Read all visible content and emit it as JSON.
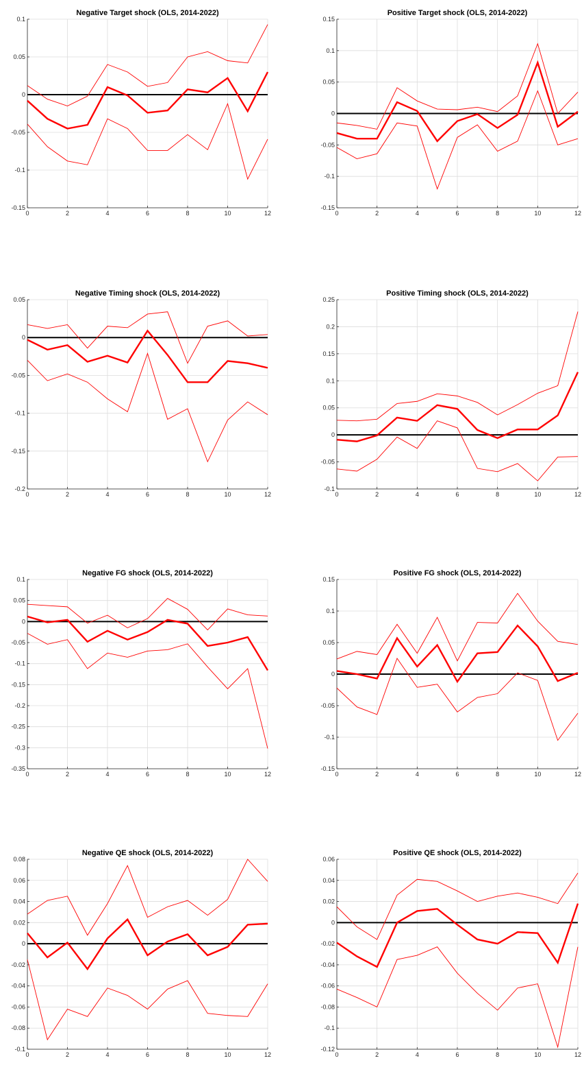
{
  "figure": {
    "x_ticks": [
      "0",
      "2",
      "4",
      "6",
      "8",
      "10",
      "12"
    ]
  },
  "chart_data": [
    {
      "type": "line",
      "title": "Negative Target shock (OLS, 2014-2022)",
      "xlabel": "",
      "ylabel": "",
      "xlim": [
        0,
        12
      ],
      "ylim": [
        -0.15,
        0.1
      ],
      "y_ticks": [
        "-0.15",
        "-0.1",
        "-0.05",
        "0",
        "0.05",
        "0.1"
      ],
      "grid": true,
      "x": [
        0,
        1,
        2,
        3,
        4,
        5,
        6,
        7,
        8,
        9,
        10,
        11,
        12
      ],
      "series": [
        {
          "role": "upper",
          "values": [
            0.012,
            -0.006,
            -0.015,
            -0.002,
            0.04,
            0.03,
            0.011,
            0.016,
            0.05,
            0.057,
            0.045,
            0.042,
            0.093
          ]
        },
        {
          "role": "estimate",
          "values": [
            -0.008,
            -0.032,
            -0.045,
            -0.04,
            0.01,
            -0.001,
            -0.024,
            -0.021,
            0.007,
            0.003,
            0.022,
            -0.022,
            0.03
          ]
        },
        {
          "role": "lower",
          "values": [
            -0.039,
            -0.069,
            -0.088,
            -0.093,
            -0.032,
            -0.045,
            -0.074,
            -0.074,
            -0.053,
            -0.073,
            -0.012,
            -0.112,
            -0.059
          ]
        }
      ]
    },
    {
      "type": "line",
      "title": "Positive Target shock (OLS, 2014-2022)",
      "xlabel": "",
      "ylabel": "",
      "xlim": [
        0,
        12
      ],
      "ylim": [
        -0.15,
        0.15
      ],
      "y_ticks": [
        "-0.15",
        "-0.1",
        "-0.05",
        "0",
        "0.05",
        "0.1",
        "0.15"
      ],
      "grid": true,
      "x": [
        0,
        1,
        2,
        3,
        4,
        5,
        6,
        7,
        8,
        9,
        10,
        11,
        12
      ],
      "series": [
        {
          "role": "upper",
          "values": [
            -0.015,
            -0.019,
            -0.025,
            0.041,
            0.02,
            0.007,
            0.006,
            0.01,
            0.003,
            0.028,
            0.111,
            0.0,
            0.034
          ]
        },
        {
          "role": "estimate",
          "values": [
            -0.031,
            -0.04,
            -0.04,
            0.018,
            0.004,
            -0.044,
            -0.012,
            -0.001,
            -0.023,
            -0.002,
            0.081,
            -0.021,
            0.003
          ]
        },
        {
          "role": "lower",
          "values": [
            -0.054,
            -0.072,
            -0.064,
            -0.015,
            -0.02,
            -0.12,
            -0.038,
            -0.018,
            -0.06,
            -0.044,
            0.036,
            -0.05,
            -0.04
          ]
        }
      ]
    },
    {
      "type": "line",
      "title": "Negative Timing shock (OLS, 2014-2022)",
      "xlabel": "",
      "ylabel": "",
      "xlim": [
        0,
        12
      ],
      "ylim": [
        -0.2,
        0.05
      ],
      "y_ticks": [
        "-0.2",
        "-0.15",
        "-0.1",
        "-0.05",
        "0",
        "0.05"
      ],
      "grid": true,
      "x": [
        0,
        1,
        2,
        3,
        4,
        5,
        6,
        7,
        8,
        9,
        10,
        11,
        12
      ],
      "series": [
        {
          "role": "upper",
          "values": [
            0.017,
            0.012,
            0.017,
            -0.014,
            0.015,
            0.013,
            0.031,
            0.034,
            -0.034,
            0.015,
            0.022,
            0.002,
            0.004
          ]
        },
        {
          "role": "estimate",
          "values": [
            -0.003,
            -0.016,
            -0.01,
            -0.032,
            -0.024,
            -0.033,
            0.009,
            -0.023,
            -0.059,
            -0.059,
            -0.031,
            -0.034,
            -0.04
          ]
        },
        {
          "role": "lower",
          "values": [
            -0.03,
            -0.057,
            -0.048,
            -0.059,
            -0.081,
            -0.098,
            -0.021,
            -0.108,
            -0.094,
            -0.164,
            -0.109,
            -0.085,
            -0.102
          ]
        }
      ]
    },
    {
      "type": "line",
      "title": "Positive Timing shock (OLS, 2014-2022)",
      "xlabel": "",
      "ylabel": "",
      "xlim": [
        0,
        12
      ],
      "ylim": [
        -0.1,
        0.25
      ],
      "y_ticks": [
        "-0.1",
        "-0.05",
        "0",
        "0.05",
        "0.1",
        "0.15",
        "0.2",
        "0.25"
      ],
      "grid": true,
      "x": [
        0,
        1,
        2,
        3,
        4,
        5,
        6,
        7,
        8,
        9,
        10,
        11,
        12
      ],
      "series": [
        {
          "role": "upper",
          "values": [
            0.027,
            0.026,
            0.029,
            0.058,
            0.062,
            0.076,
            0.072,
            0.06,
            0.037,
            0.056,
            0.077,
            0.091,
            0.228
          ]
        },
        {
          "role": "estimate",
          "values": [
            -0.009,
            -0.012,
            -0.001,
            0.032,
            0.026,
            0.055,
            0.048,
            0.009,
            -0.006,
            0.01,
            0.01,
            0.036,
            0.116
          ]
        },
        {
          "role": "lower",
          "values": [
            -0.063,
            -0.067,
            -0.045,
            -0.004,
            -0.025,
            0.026,
            0.013,
            -0.062,
            -0.068,
            -0.053,
            -0.085,
            -0.041,
            -0.04
          ]
        }
      ]
    },
    {
      "type": "line",
      "title": "Negative FG shock (OLS, 2014-2022)",
      "xlabel": "",
      "ylabel": "",
      "xlim": [
        0,
        12
      ],
      "ylim": [
        -0.35,
        0.1
      ],
      "y_ticks": [
        "-0.35",
        "-0.3",
        "-0.25",
        "-0.2",
        "-0.15",
        "-0.1",
        "-0.05",
        "0",
        "0.05",
        "0.1"
      ],
      "grid": true,
      "x": [
        0,
        1,
        2,
        3,
        4,
        5,
        6,
        7,
        8,
        9,
        10,
        11,
        12
      ],
      "series": [
        {
          "role": "upper",
          "values": [
            0.041,
            0.038,
            0.035,
            -0.004,
            0.015,
            -0.015,
            0.007,
            0.055,
            0.029,
            -0.02,
            0.03,
            0.016,
            0.013
          ]
        },
        {
          "role": "estimate",
          "values": [
            0.012,
            -0.002,
            0.004,
            -0.048,
            -0.022,
            -0.043,
            -0.025,
            0.004,
            -0.005,
            -0.058,
            -0.05,
            -0.037,
            -0.116
          ]
        },
        {
          "role": "lower",
          "values": [
            -0.028,
            -0.054,
            -0.043,
            -0.112,
            -0.075,
            -0.085,
            -0.07,
            -0.067,
            -0.053,
            -0.108,
            -0.16,
            -0.112,
            -0.302
          ]
        }
      ]
    },
    {
      "type": "line",
      "title": "Positive FG shock (OLS, 2014-2022)",
      "xlabel": "",
      "ylabel": "",
      "xlim": [
        0,
        12
      ],
      "ylim": [
        -0.15,
        0.15
      ],
      "y_ticks": [
        "-0.15",
        "-0.1",
        "-0.05",
        "0",
        "0.05",
        "0.1",
        "0.15"
      ],
      "grid": true,
      "x": [
        0,
        1,
        2,
        3,
        4,
        5,
        6,
        7,
        8,
        9,
        10,
        11,
        12
      ],
      "series": [
        {
          "role": "upper",
          "values": [
            0.024,
            0.036,
            0.031,
            0.079,
            0.033,
            0.09,
            0.021,
            0.082,
            0.081,
            0.128,
            0.084,
            0.052,
            0.047
          ]
        },
        {
          "role": "estimate",
          "values": [
            0.005,
            0.0,
            -0.007,
            0.057,
            0.012,
            0.046,
            -0.012,
            0.033,
            0.035,
            0.077,
            0.044,
            -0.011,
            0.002
          ]
        },
        {
          "role": "lower",
          "values": [
            -0.022,
            -0.052,
            -0.064,
            0.025,
            -0.021,
            -0.016,
            -0.06,
            -0.037,
            -0.031,
            0.002,
            -0.01,
            -0.105,
            -0.062
          ]
        }
      ]
    },
    {
      "type": "line",
      "title": "Negative QE shock (OLS, 2014-2022)",
      "xlabel": "",
      "ylabel": "",
      "xlim": [
        0,
        12
      ],
      "ylim": [
        -0.1,
        0.08
      ],
      "y_ticks": [
        "-0.1",
        "-0.08",
        "-0.06",
        "-0.04",
        "-0.02",
        "0",
        "0.02",
        "0.04",
        "0.06",
        "0.08"
      ],
      "grid": true,
      "x": [
        0,
        1,
        2,
        3,
        4,
        5,
        6,
        7,
        8,
        9,
        10,
        11,
        12
      ],
      "series": [
        {
          "role": "upper",
          "values": [
            0.028,
            0.041,
            0.045,
            0.008,
            0.038,
            0.074,
            0.025,
            0.035,
            0.041,
            0.027,
            0.042,
            0.08,
            0.059
          ]
        },
        {
          "role": "estimate",
          "values": [
            0.01,
            -0.013,
            0.001,
            -0.024,
            0.005,
            0.023,
            -0.011,
            0.002,
            0.009,
            -0.011,
            -0.003,
            0.018,
            0.019
          ]
        },
        {
          "role": "lower",
          "values": [
            -0.015,
            -0.091,
            -0.062,
            -0.069,
            -0.042,
            -0.049,
            -0.062,
            -0.043,
            -0.035,
            -0.066,
            -0.068,
            -0.069,
            -0.038
          ]
        }
      ]
    },
    {
      "type": "line",
      "title": "Positive QE shock (OLS, 2014-2022)",
      "xlabel": "",
      "ylabel": "",
      "xlim": [
        0,
        12
      ],
      "ylim": [
        -0.12,
        0.06
      ],
      "y_ticks": [
        "-0.12",
        "-0.1",
        "-0.08",
        "-0.06",
        "-0.04",
        "-0.02",
        "0",
        "0.02",
        "0.04",
        "0.06"
      ],
      "grid": true,
      "x": [
        0,
        1,
        2,
        3,
        4,
        5,
        6,
        7,
        8,
        9,
        10,
        11,
        12
      ],
      "series": [
        {
          "role": "upper",
          "values": [
            0.015,
            -0.004,
            -0.016,
            0.026,
            0.041,
            0.039,
            0.03,
            0.02,
            0.025,
            0.028,
            0.024,
            0.018,
            0.047
          ]
        },
        {
          "role": "estimate",
          "values": [
            -0.019,
            -0.032,
            -0.042,
            0.0,
            0.011,
            0.013,
            -0.002,
            -0.016,
            -0.02,
            -0.009,
            -0.01,
            -0.038,
            0.018
          ]
        },
        {
          "role": "lower",
          "values": [
            -0.063,
            -0.071,
            -0.08,
            -0.035,
            -0.031,
            -0.023,
            -0.048,
            -0.067,
            -0.083,
            -0.062,
            -0.058,
            -0.118,
            -0.023
          ]
        }
      ]
    }
  ]
}
